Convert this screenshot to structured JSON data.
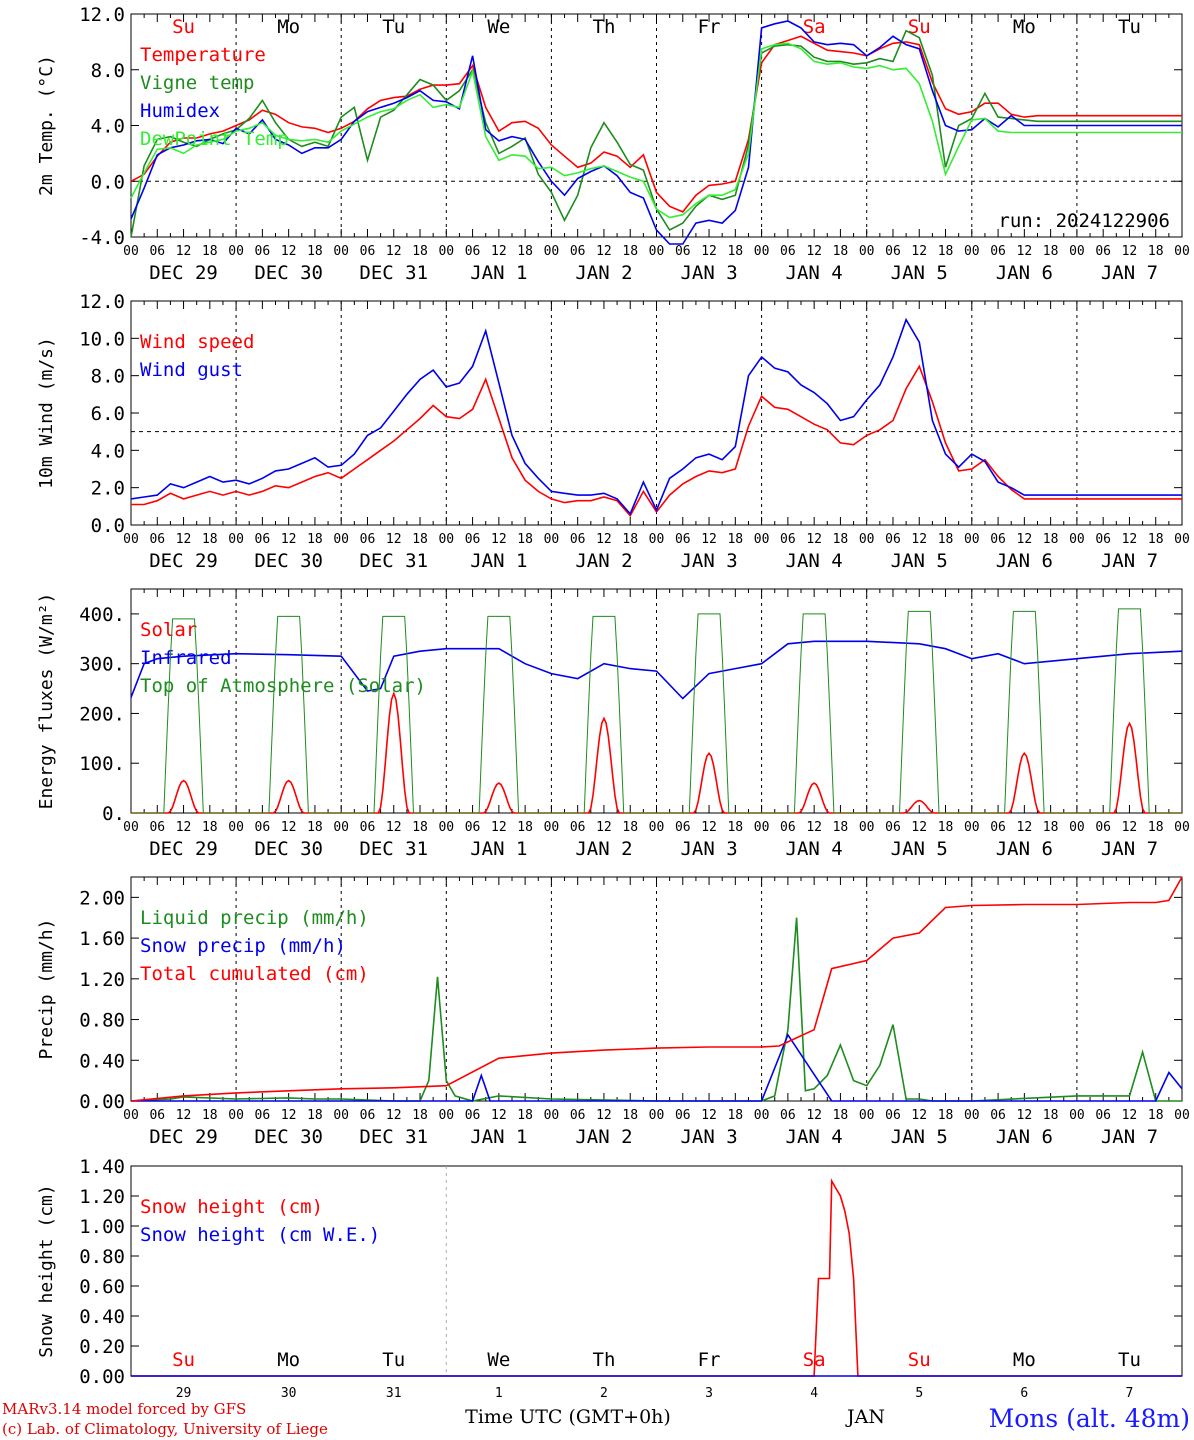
{
  "colors": {
    "red": "#ff0000",
    "green": "#1e8c1e",
    "blue": "#0000ee",
    "lightgreen": "#33ee33",
    "black": "#000000"
  },
  "day_names": [
    "Su",
    "Mo",
    "Tu",
    "We",
    "Th",
    "Fr",
    "Sa",
    "Su",
    "Mo",
    "Tu"
  ],
  "day_name_colors": [
    "red",
    "black",
    "black",
    "black",
    "black",
    "black",
    "red",
    "red",
    "black",
    "black"
  ],
  "hour_ticks": [
    "00",
    "06",
    "12",
    "18"
  ],
  "date_labels": [
    "DEC 29",
    "DEC 30",
    "DEC 31",
    "JAN  1",
    "JAN  2",
    "JAN  3",
    "JAN  4",
    "JAN  5",
    "JAN  6",
    "JAN  7"
  ],
  "bottom_day_numbers": [
    "29",
    "30",
    "31",
    "1",
    "2",
    "3",
    "4",
    "5",
    "6",
    "7"
  ],
  "bottom_month": "JAN",
  "footer": {
    "xlabel": "Time UTC (GMT+0h)",
    "credit_line1": "MARv3.14 model forced by GFS",
    "credit_line2": "(c) Lab. of Climatology, University of Liege",
    "station": "Mons (alt. 48m)"
  },
  "chart_data": [
    {
      "type": "line",
      "ylabel": "2m Temp. (°C)",
      "ylim": [
        -4,
        12
      ],
      "yticks": [
        "-4.0",
        "0.0",
        "4.0",
        "8.0",
        "12.0"
      ],
      "annotation": "run: 2024122906",
      "x_hours": [
        0,
        3,
        6,
        9,
        12,
        15,
        18,
        21,
        24,
        27,
        30,
        33,
        36,
        39,
        42,
        45,
        48,
        51,
        54,
        57,
        60,
        63,
        66,
        69,
        72,
        75,
        78,
        81,
        84,
        87,
        90,
        93,
        96,
        99,
        102,
        105,
        108,
        111,
        114,
        117,
        120,
        123,
        126,
        129,
        132,
        135,
        138,
        141,
        144,
        147,
        150,
        153,
        156,
        159,
        162,
        165,
        168,
        171,
        174,
        177,
        180,
        183,
        186,
        189,
        192,
        195,
        198,
        201,
        204,
        207,
        210,
        213,
        216,
        219,
        222,
        225,
        228,
        231,
        234,
        237,
        240
      ],
      "series": [
        {
          "name": "Temperature",
          "color": "red",
          "values": [
            0,
            0.5,
            1.8,
            2.8,
            3.1,
            3.1,
            3.4,
            3.6,
            4.0,
            4.4,
            5.1,
            4.8,
            4.2,
            3.9,
            3.8,
            3.5,
            3.8,
            4.3,
            5.2,
            5.8,
            6.0,
            6.1,
            6.6,
            6.9,
            6.9,
            7.0,
            8.3,
            5.3,
            3.6,
            4.2,
            4.3,
            3.8,
            2.6,
            1.8,
            1.0,
            1.3,
            2.1,
            1.8,
            1.0,
            1.9,
            -0.8,
            -1.8,
            -2.2,
            -1.0,
            -0.3,
            -0.2,
            0,
            3.0,
            8.5,
            9.8,
            10.1,
            10.4,
            9.9,
            9.4,
            9.3,
            9.2,
            9.0,
            9.5,
            9.9,
            10.0,
            9.8,
            7.1,
            5.2,
            4.8,
            5.0,
            5.6,
            5.6,
            4.8,
            4.6,
            4.7,
            4.7,
            4.7,
            4.7,
            4.7,
            4.7,
            4.7,
            4.7,
            4.7,
            4.7,
            4.7,
            4.7
          ]
        },
        {
          "name": "Vigne temp",
          "color": "green",
          "values": [
            -4,
            1.1,
            3.0,
            3.2,
            2.8,
            2.5,
            3.0,
            3.4,
            3.7,
            4.5,
            5.8,
            4.2,
            3.0,
            2.5,
            2.8,
            2.5,
            4.6,
            5.3,
            1.5,
            4.6,
            5.1,
            6.2,
            7.3,
            6.9,
            5.8,
            6.5,
            8.0,
            4.2,
            2.0,
            2.5,
            3.1,
            0.5,
            -0.8,
            -2.8,
            -1.0,
            2.4,
            4.2,
            2.8,
            1.2,
            0.8,
            -2.0,
            -3.5,
            -3.0,
            -1.8,
            -1.0,
            -1.3,
            -1.0,
            2.6,
            9.2,
            9.7,
            9.8,
            9.7,
            8.9,
            8.6,
            8.6,
            8.4,
            8.5,
            8.8,
            8.6,
            10.8,
            10.3,
            7.6,
            1.0,
            4.0,
            4.5,
            6.3,
            4.6,
            4.5,
            4.4,
            4.3,
            4.3,
            4.3,
            4.3,
            4.3,
            4.3,
            4.3,
            4.3,
            4.3,
            4.3,
            4.3,
            4.3
          ]
        },
        {
          "name": "Humidex",
          "color": "blue",
          "values": [
            -2.7,
            -0.5,
            1.9,
            2.4,
            2.6,
            2.9,
            3.0,
            2.7,
            3.8,
            3.4,
            4.4,
            3.0,
            2.6,
            2.0,
            2.4,
            2.4,
            3.0,
            4.3,
            5.0,
            5.3,
            5.6,
            6.0,
            6.5,
            5.8,
            5.7,
            5.2,
            9.0,
            3.7,
            2.9,
            3.2,
            3.0,
            1.4,
            0,
            -1.0,
            0.2,
            0.7,
            1.1,
            0.4,
            -0.8,
            -1.2,
            -3.5,
            -4.5,
            -4.5,
            -3.0,
            -2.8,
            -3.0,
            -2.1,
            1.0,
            11.0,
            11.3,
            11.5,
            11.0,
            10.0,
            9.8,
            9.9,
            9.8,
            9.0,
            9.6,
            10.4,
            9.8,
            9.5,
            6.5,
            4.0,
            3.6,
            3.7,
            4.5,
            3.9,
            4.7,
            4.0,
            4.0,
            4.0,
            4.0,
            4.0,
            4.0,
            4.0,
            4.0,
            4.0,
            4.0,
            4.0,
            4.0,
            4.0
          ]
        },
        {
          "name": "DewPoint Temp",
          "color": "lightgreen",
          "values": [
            -1.2,
            0.6,
            2.3,
            2.4,
            2.0,
            2.6,
            2.8,
            3.0,
            3.6,
            3.8,
            4.2,
            3.3,
            3.0,
            2.9,
            3.0,
            2.8,
            3.6,
            4.1,
            4.6,
            5.0,
            5.2,
            5.8,
            6.2,
            5.3,
            5.5,
            5.3,
            7.9,
            3.2,
            1.5,
            1.9,
            1.8,
            0.9,
            1.0,
            0.4,
            0.6,
            0.9,
            1.1,
            0.7,
            0.3,
            0,
            -2.0,
            -2.6,
            -2.4,
            -1.6,
            -1.0,
            -1.0,
            -0.6,
            2.0,
            9.5,
            9.8,
            9.9,
            9.5,
            8.6,
            8.4,
            8.5,
            8.2,
            8.1,
            8.3,
            8.0,
            8.1,
            7.0,
            4.3,
            0.5,
            2.5,
            4.4,
            4.5,
            3.6,
            3.5,
            3.5,
            3.5,
            3.5,
            3.5,
            3.5,
            3.5,
            3.5,
            3.5,
            3.5,
            3.5,
            3.5,
            3.5,
            3.5
          ]
        }
      ],
      "zero_line": 0
    },
    {
      "type": "line",
      "ylabel": "10m Wind (m/s)",
      "ylim": [
        0,
        12
      ],
      "yticks": [
        "0.0",
        "2.0",
        "4.0",
        "6.0",
        "8.0",
        "10.0",
        "12.0"
      ],
      "x_hours": [
        0,
        3,
        6,
        9,
        12,
        15,
        18,
        21,
        24,
        27,
        30,
        33,
        36,
        39,
        42,
        45,
        48,
        51,
        54,
        57,
        60,
        63,
        66,
        69,
        72,
        75,
        78,
        81,
        84,
        87,
        90,
        93,
        96,
        99,
        102,
        105,
        108,
        111,
        114,
        117,
        120,
        123,
        126,
        129,
        132,
        135,
        138,
        141,
        144,
        147,
        150,
        153,
        156,
        159,
        162,
        165,
        168,
        171,
        174,
        177,
        180,
        183,
        186,
        189,
        192,
        195,
        198,
        201,
        204,
        207,
        210,
        213,
        216,
        219,
        222,
        225,
        228,
        231,
        234,
        237,
        240
      ],
      "series": [
        {
          "name": "Wind speed",
          "color": "red",
          "values": [
            1.1,
            1.1,
            1.3,
            1.7,
            1.4,
            1.6,
            1.8,
            1.6,
            1.8,
            1.6,
            1.8,
            2.1,
            2.0,
            2.3,
            2.6,
            2.8,
            2.5,
            3.0,
            3.5,
            4.0,
            4.5,
            5.1,
            5.7,
            6.4,
            5.8,
            5.7,
            6.2,
            7.8,
            5.7,
            3.6,
            2.4,
            1.8,
            1.4,
            1.2,
            1.3,
            1.3,
            1.5,
            1.3,
            0.5,
            1.8,
            0.7,
            1.6,
            2.2,
            2.6,
            2.9,
            2.8,
            3.0,
            5.3,
            6.9,
            6.3,
            6.2,
            5.8,
            5.4,
            5.1,
            4.4,
            4.3,
            4.8,
            5.1,
            5.6,
            7.3,
            8.5,
            6.6,
            4.4,
            2.9,
            3.0,
            3.5,
            2.6,
            1.9,
            1.4,
            1.4,
            1.4,
            1.4,
            1.4,
            1.4,
            1.4,
            1.4,
            1.4,
            1.4,
            1.4,
            1.4,
            1.4
          ]
        },
        {
          "name": "Wind gust",
          "color": "blue",
          "values": [
            1.4,
            1.5,
            1.6,
            2.2,
            2.0,
            2.3,
            2.6,
            2.3,
            2.4,
            2.2,
            2.5,
            2.9,
            3.0,
            3.3,
            3.6,
            3.1,
            3.2,
            3.8,
            4.8,
            5.2,
            6.1,
            7.0,
            7.8,
            8.3,
            7.4,
            7.6,
            8.5,
            10.4,
            7.6,
            4.8,
            3.3,
            2.5,
            1.8,
            1.7,
            1.6,
            1.6,
            1.7,
            1.4,
            0.6,
            2.3,
            0.8,
            2.5,
            3.0,
            3.6,
            3.8,
            3.5,
            4.2,
            8.0,
            9.0,
            8.4,
            8.2,
            7.5,
            7.1,
            6.5,
            5.6,
            5.8,
            6.7,
            7.5,
            9.0,
            11.0,
            9.8,
            5.6,
            3.8,
            3.1,
            3.8,
            3.4,
            2.3,
            2.0,
            1.6,
            1.6,
            1.6,
            1.6,
            1.6,
            1.6,
            1.6,
            1.6,
            1.6,
            1.6,
            1.6,
            1.6,
            1.6
          ]
        }
      ],
      "threshold_line": 5
    },
    {
      "type": "line",
      "ylabel": "Energy fluxes (W/m²)",
      "ylim": [
        0,
        450
      ],
      "yticks": [
        "0.",
        "100.",
        "200.",
        "300.",
        "400."
      ],
      "series": [
        {
          "name": "Solar",
          "color": "red",
          "peaks": [
            65,
            65,
            240,
            60,
            190,
            120,
            60,
            25,
            120,
            180
          ]
        },
        {
          "name": "Infrared",
          "color": "blue",
          "level_hours": [
            0,
            3,
            6,
            12,
            24,
            36,
            48,
            54,
            57,
            60,
            66,
            72,
            78,
            84,
            90,
            96,
            102,
            108,
            114,
            120,
            126,
            132,
            138,
            144,
            150,
            156,
            168,
            180,
            186,
            192,
            198,
            204,
            216,
            228,
            240
          ],
          "values": [
            232,
            300,
            310,
            315,
            320,
            318,
            315,
            245,
            250,
            315,
            325,
            330,
            330,
            330,
            300,
            280,
            270,
            300,
            290,
            285,
            230,
            280,
            290,
            300,
            340,
            345,
            345,
            340,
            330,
            310,
            320,
            300,
            310,
            320,
            325
          ]
        },
        {
          "name": "Top of Atmosphere (Solar)",
          "color": "green",
          "peaks": [
            390,
            395,
            395,
            395,
            395,
            400,
            400,
            405,
            405,
            410
          ]
        }
      ]
    },
    {
      "type": "line",
      "ylabel": "Precip (mm/h)",
      "ylim": [
        0,
        2.2
      ],
      "yticks": [
        "0.00",
        "0.40",
        "0.80",
        "1.20",
        "1.60",
        "2.00"
      ],
      "series": [
        {
          "name": "Liquid precip (mm/h)",
          "color": "green",
          "hours": [
            0,
            9,
            12,
            24,
            36,
            42,
            48,
            60,
            66,
            68,
            70,
            72,
            74,
            78,
            84,
            96,
            120,
            144,
            147,
            150,
            152,
            154,
            156,
            159,
            162,
            165,
            168,
            171,
            174,
            177,
            180,
            183,
            186,
            192,
            216,
            228,
            231,
            234,
            237,
            240
          ],
          "values": [
            0,
            0.02,
            0.04,
            0.02,
            0.03,
            0.02,
            0.02,
            0,
            0,
            0.2,
            1.22,
            0.2,
            0.05,
            0,
            0.05,
            0.02,
            0,
            0,
            0.05,
            0.7,
            1.8,
            0.1,
            0.12,
            0.25,
            0.55,
            0.2,
            0.15,
            0.35,
            0.75,
            0.02,
            0.02,
            0,
            0,
            0,
            0.05,
            0.05,
            0.48,
            0,
            0,
            0
          ]
        },
        {
          "name": "Snow precip (mm/h)",
          "color": "blue",
          "hours": [
            0,
            72,
            78,
            80,
            82,
            96,
            144,
            150,
            160,
            162,
            168,
            216,
            234,
            237,
            240
          ],
          "values": [
            0,
            0,
            0,
            0.25,
            0,
            0,
            0,
            0.65,
            0,
            0,
            0,
            0,
            0,
            0.28,
            0.12
          ]
        },
        {
          "name": "Total cumulated (cm)",
          "color": "red",
          "hours": [
            0,
            12,
            24,
            36,
            48,
            60,
            72,
            84,
            96,
            108,
            120,
            132,
            144,
            148,
            150,
            156,
            160,
            168,
            174,
            180,
            186,
            192,
            204,
            216,
            228,
            234,
            237,
            240
          ],
          "values": [
            0,
            0.05,
            0.08,
            0.1,
            0.12,
            0.13,
            0.15,
            0.42,
            0.47,
            0.5,
            0.52,
            0.53,
            0.53,
            0.54,
            0.58,
            0.7,
            1.3,
            1.38,
            1.6,
            1.65,
            1.9,
            1.92,
            1.93,
            1.93,
            1.95,
            1.95,
            1.97,
            2.2
          ]
        }
      ]
    },
    {
      "type": "line",
      "ylabel": "Snow height (cm)",
      "ylim": [
        0,
        1.4
      ],
      "yticks": [
        "0.00",
        "0.20",
        "0.40",
        "0.60",
        "0.80",
        "1.00",
        "1.20",
        "1.40"
      ],
      "series": [
        {
          "name": "Snow height (cm)",
          "color": "red",
          "hours": [
            0,
            156,
            157,
            159,
            159.5,
            160,
            161,
            162,
            163,
            164,
            165,
            166,
            240
          ],
          "values": [
            0,
            0,
            0.65,
            0.65,
            0.65,
            1.3,
            1.25,
            1.2,
            1.1,
            0.95,
            0.65,
            0,
            0
          ]
        },
        {
          "name": "Snow height (cm W.E.)",
          "color": "blue",
          "hours": [
            0,
            240
          ],
          "values": [
            0,
            0
          ]
        }
      ]
    }
  ]
}
